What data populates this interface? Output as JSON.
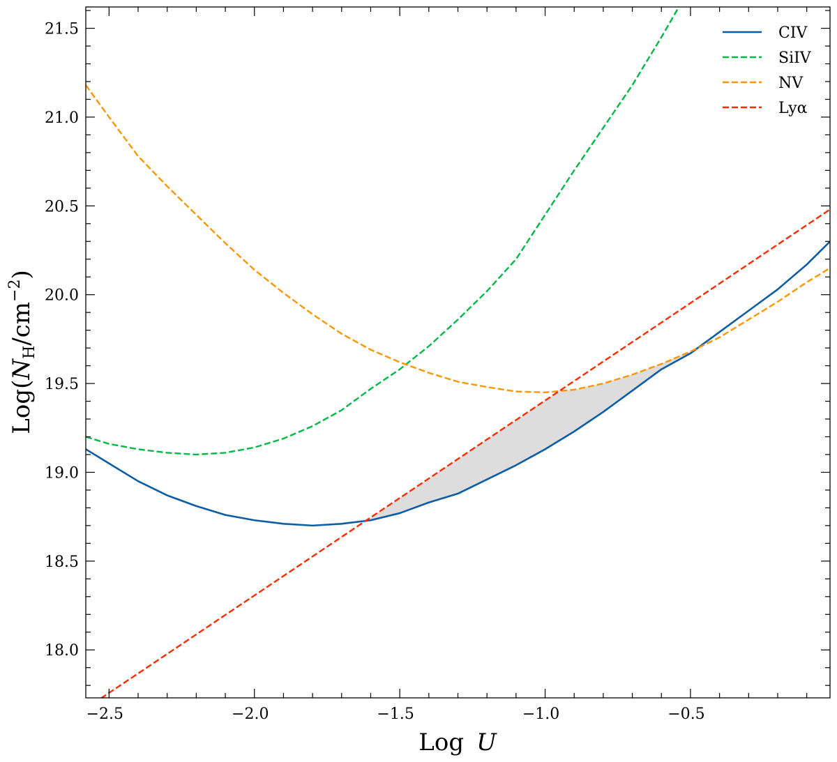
{
  "chart_data": {
    "type": "line",
    "title": "",
    "xlabel": {
      "text": "Log",
      "var": "U"
    },
    "ylabel": {
      "prefix": "Log(",
      "var": "N",
      "sub": "H",
      "mid": "/cm",
      "sup": "−2",
      "suffix": ")"
    },
    "xlim": [
      -2.58,
      -0.02
    ],
    "ylim": [
      17.73,
      21.62
    ],
    "xticks": [
      -2.5,
      -2.0,
      -1.5,
      -1.0,
      -0.5
    ],
    "xtick_labels": [
      "−2.5",
      "−2.0",
      "−1.5",
      "−1.0",
      "−0.5"
    ],
    "yticks": [
      18.0,
      18.5,
      19.0,
      19.5,
      20.0,
      20.5,
      21.0,
      21.5
    ],
    "ytick_labels": [
      "18.0",
      "18.5",
      "19.0",
      "19.5",
      "20.0",
      "20.5",
      "21.0",
      "21.5"
    ],
    "minor_tick_step": 0.1,
    "grid": false,
    "legend_placement": "top-right",
    "series": [
      {
        "name": "CIV",
        "color": "#0C5DA5",
        "style": "solid",
        "x": [
          -2.58,
          -2.5,
          -2.4,
          -2.3,
          -2.2,
          -2.1,
          -2.0,
          -1.9,
          -1.8,
          -1.7,
          -1.6,
          -1.5,
          -1.4,
          -1.3,
          -1.2,
          -1.1,
          -1.0,
          -0.9,
          -0.8,
          -0.7,
          -0.6,
          -0.5,
          -0.4,
          -0.3,
          -0.2,
          -0.1,
          -0.02
        ],
        "y": [
          19.13,
          19.05,
          18.95,
          18.87,
          18.81,
          18.76,
          18.73,
          18.71,
          18.7,
          18.71,
          18.73,
          18.77,
          18.83,
          18.88,
          18.96,
          19.04,
          19.13,
          19.23,
          19.34,
          19.46,
          19.58,
          19.67,
          19.79,
          19.91,
          20.03,
          20.17,
          20.3
        ]
      },
      {
        "name": "SiIV",
        "color": "#00B945",
        "style": "dashed",
        "x": [
          -2.58,
          -2.5,
          -2.4,
          -2.3,
          -2.2,
          -2.1,
          -2.0,
          -1.9,
          -1.8,
          -1.7,
          -1.6,
          -1.5,
          -1.4,
          -1.3,
          -1.2,
          -1.1,
          -1.0,
          -0.9,
          -0.8,
          -0.7,
          -0.6,
          -0.54
        ],
        "y": [
          19.2,
          19.16,
          19.13,
          19.11,
          19.1,
          19.11,
          19.14,
          19.19,
          19.26,
          19.35,
          19.47,
          19.58,
          19.71,
          19.86,
          20.02,
          20.2,
          20.45,
          20.7,
          20.94,
          21.18,
          21.45,
          21.62
        ]
      },
      {
        "name": "NV",
        "color": "#FF9500",
        "style": "dashed",
        "x": [
          -2.58,
          -2.5,
          -2.4,
          -2.3,
          -2.2,
          -2.1,
          -2.0,
          -1.9,
          -1.8,
          -1.7,
          -1.6,
          -1.5,
          -1.4,
          -1.3,
          -1.2,
          -1.1,
          -1.0,
          -0.9,
          -0.8,
          -0.7,
          -0.6,
          -0.5,
          -0.4,
          -0.3,
          -0.2,
          -0.1,
          -0.02
        ],
        "y": [
          21.18,
          21.0,
          20.78,
          20.61,
          20.45,
          20.29,
          20.14,
          20.01,
          19.89,
          19.78,
          19.69,
          19.62,
          19.56,
          19.51,
          19.48,
          19.455,
          19.45,
          19.465,
          19.5,
          19.55,
          19.61,
          19.68,
          19.76,
          19.86,
          19.96,
          20.07,
          20.15
        ]
      },
      {
        "name": "Lyα",
        "color": "#FF2C00",
        "style": "dashed",
        "x": [
          -2.58,
          -0.02
        ],
        "y": [
          17.67,
          20.48
        ]
      }
    ],
    "fill_between": {
      "lower": "CIV",
      "upper": [
        "Lyα",
        "NV"
      ],
      "color": "#DDDDDD"
    }
  }
}
